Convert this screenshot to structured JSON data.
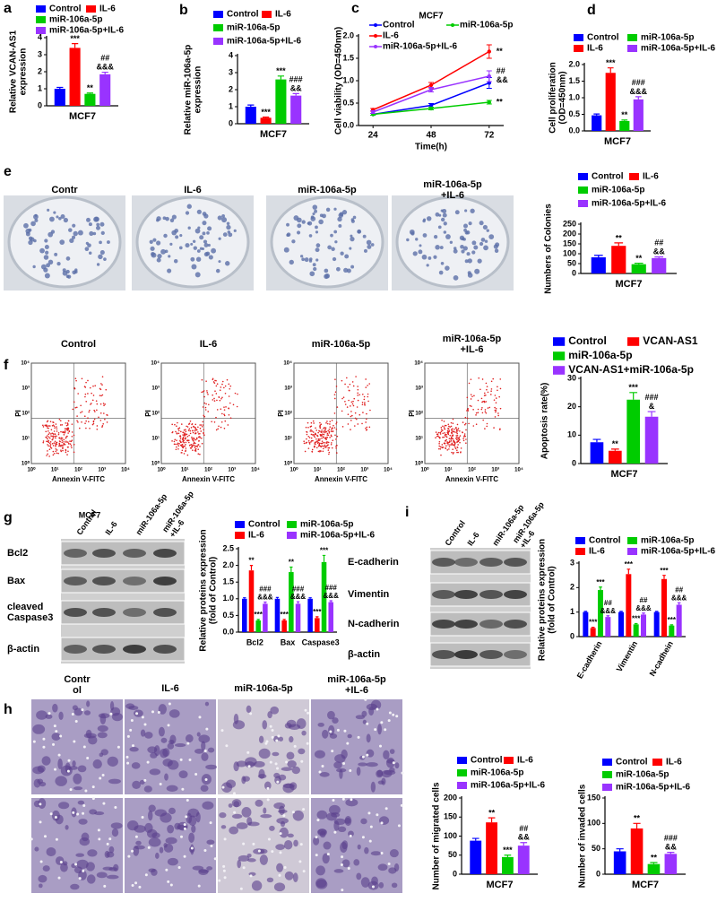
{
  "chart_data": [
    {
      "type": "bar",
      "panel": "a",
      "ylabel": "Relative VCAN-AS1\nexpression",
      "categories": [
        "MCF7"
      ],
      "ylim": [
        0,
        4
      ],
      "yticks": [
        0,
        1,
        2,
        3,
        4
      ],
      "series": [
        {
          "name": "Control",
          "color": "#0000ff",
          "values": [
            1.0
          ],
          "errors": [
            0.08
          ],
          "annotations": [
            null
          ]
        },
        {
          "name": "IL-6",
          "color": "#ff0000",
          "values": [
            3.4
          ],
          "errors": [
            0.25
          ],
          "annotations": [
            "***"
          ]
        },
        {
          "name": "miR-106a-5p",
          "color": "#00cc00",
          "values": [
            0.7
          ],
          "errors": [
            0.05
          ],
          "annotations": [
            "**"
          ]
        },
        {
          "name": "miR-106a-5p+IL-6",
          "color": "#9933ff",
          "values": [
            1.85
          ],
          "errors": [
            0.12
          ],
          "annotations": [
            "##\n&&&"
          ]
        }
      ]
    },
    {
      "type": "bar",
      "panel": "b",
      "ylabel": "Relative miR-106a-5p\nexpression",
      "categories": [
        "MCF7"
      ],
      "ylim": [
        0,
        4
      ],
      "yticks": [
        0,
        1,
        2,
        3,
        4
      ],
      "series": [
        {
          "name": "Control",
          "color": "#0000ff",
          "values": [
            1.0
          ],
          "errors": [
            0.1
          ],
          "annotations": [
            null
          ]
        },
        {
          "name": "IL-6",
          "color": "#ff0000",
          "values": [
            0.35
          ],
          "errors": [
            0.04
          ],
          "annotations": [
            "***"
          ]
        },
        {
          "name": "miR-106a-5p",
          "color": "#00cc00",
          "values": [
            2.6
          ],
          "errors": [
            0.2
          ],
          "annotations": [
            "***"
          ]
        },
        {
          "name": "miR-106a-5p+IL-6",
          "color": "#9933ff",
          "values": [
            1.65
          ],
          "errors": [
            0.12
          ],
          "annotations": [
            "###\n&&"
          ]
        }
      ]
    },
    {
      "type": "line",
      "panel": "c",
      "title": "MCF7",
      "xlabel": "Time(h)",
      "ylabel": "Cell viability (OD=450nm)",
      "x": [
        24,
        48,
        72
      ],
      "xlim": [
        18,
        78
      ],
      "xticks": [
        24,
        48,
        72
      ],
      "ylim": [
        0,
        2
      ],
      "yticks": [
        {
          "value": 0,
          "label": "0.0"
        },
        {
          "value": 0.5,
          "label": "0.5"
        },
        {
          "value": 1,
          "label": "1.0"
        },
        {
          "value": 1.5,
          "label": "1.5"
        },
        {
          "value": 2,
          "label": "2.0"
        }
      ],
      "series": [
        {
          "name": "Control",
          "color": "#0000ff",
          "values": [
            0.25,
            0.45,
            0.95
          ],
          "errors": [
            0.02,
            0.04,
            0.12
          ],
          "annotation": null
        },
        {
          "name": "IL-6",
          "color": "#ff0000",
          "values": [
            0.35,
            0.9,
            1.65
          ],
          "errors": [
            0.03,
            0.06,
            0.15
          ],
          "annotation": "**"
        },
        {
          "name": "miR-106a-5p",
          "color": "#00cc00",
          "values": [
            0.25,
            0.38,
            0.52
          ],
          "errors": [
            0.02,
            0.03,
            0.04
          ],
          "annotation": "**"
        },
        {
          "name": "miR-106a-5p+IL-6",
          "color": "#9933ff",
          "values": [
            0.3,
            0.8,
            1.1
          ],
          "errors": [
            0.03,
            0.05,
            0.12
          ],
          "annotation": "##\n&&"
        }
      ]
    },
    {
      "type": "bar",
      "panel": "d",
      "ylabel": "Cell proliferation\n(OD=450nm)",
      "categories": [
        "MCF7"
      ],
      "ylim": [
        0,
        2
      ],
      "yticks": [
        {
          "value": 0,
          "label": "0.0"
        },
        {
          "value": 0.5,
          "label": "0.5"
        },
        {
          "value": 1,
          "label": "1.0"
        },
        {
          "value": 1.5,
          "label": "1.5"
        },
        {
          "value": 2,
          "label": "2.0"
        }
      ],
      "series": [
        {
          "name": "Control",
          "color": "#0000ff",
          "values": [
            0.47
          ],
          "errors": [
            0.04
          ],
          "annotations": [
            null
          ]
        },
        {
          "name": "IL-6",
          "color": "#ff0000",
          "values": [
            1.75
          ],
          "errors": [
            0.15
          ],
          "annotations": [
            "***"
          ]
        },
        {
          "name": "miR-106a-5p",
          "color": "#00cc00",
          "values": [
            0.3
          ],
          "errors": [
            0.03
          ],
          "annotations": [
            "**"
          ]
        },
        {
          "name": "miR-106a-5p+IL-6",
          "color": "#9933ff",
          "values": [
            0.95
          ],
          "errors": [
            0.08
          ],
          "annotations": [
            "###\n&&&"
          ]
        }
      ]
    },
    {
      "type": "bar",
      "panel": "e",
      "ylabel": "Numbers of Colonies",
      "categories": [
        "MCF7"
      ],
      "ylim": [
        0,
        250
      ],
      "yticks": [
        0,
        50,
        100,
        150,
        200,
        250
      ],
      "series": [
        {
          "name": "Control",
          "color": "#0000ff",
          "values": [
            82
          ],
          "errors": [
            10
          ],
          "annotations": [
            null
          ]
        },
        {
          "name": "IL-6",
          "color": "#ff0000",
          "values": [
            140
          ],
          "errors": [
            15
          ],
          "annotations": [
            "**"
          ]
        },
        {
          "name": "miR-106a-5p",
          "color": "#00cc00",
          "values": [
            47
          ],
          "errors": [
            5
          ],
          "annotations": [
            "**"
          ]
        },
        {
          "name": "miR-106a-5p+IL-6",
          "color": "#9933ff",
          "values": [
            78
          ],
          "errors": [
            6
          ],
          "annotations": [
            "##\n&&"
          ]
        }
      ]
    },
    {
      "type": "bar",
      "panel": "f",
      "ylabel": "Apoptosis rate(%)",
      "categories": [
        "MCF7"
      ],
      "ylim": [
        0,
        30
      ],
      "yticks": [
        0,
        10,
        20,
        30
      ],
      "series": [
        {
          "name": "Control",
          "color": "#0000ff",
          "values": [
            7.5
          ],
          "errors": [
            1
          ],
          "annotations": [
            null
          ]
        },
        {
          "name": "VCAN-AS1",
          "color": "#ff0000",
          "values": [
            4.5
          ],
          "errors": [
            0.6
          ],
          "annotations": [
            "**"
          ]
        },
        {
          "name": "miR-106a-5p",
          "color": "#00cc00",
          "values": [
            22.5
          ],
          "errors": [
            2.5
          ],
          "annotations": [
            "***"
          ]
        },
        {
          "name": "VCAN-AS1+miR-106a-5p",
          "color": "#9933ff",
          "values": [
            16.5
          ],
          "errors": [
            1.8
          ],
          "annotations": [
            "###\n&"
          ]
        }
      ]
    },
    {
      "type": "bar",
      "panel": "g",
      "ylabel": "Relative proteins expression\n(fold of Control)",
      "categories": [
        "Bcl2",
        "Bax",
        "Caspase3"
      ],
      "ylim": [
        0,
        2.5
      ],
      "yticks": [
        {
          "value": 0,
          "label": "0.0"
        },
        {
          "value": 0.5,
          "label": "0.5"
        },
        {
          "value": 1,
          "label": "1.0"
        },
        {
          "value": 1.5,
          "label": "1.5"
        },
        {
          "value": 2,
          "label": "2.0"
        },
        {
          "value": 2.5,
          "label": "2.5"
        }
      ],
      "series": [
        {
          "name": "Control",
          "color": "#0000ff",
          "values": [
            1,
            1,
            1
          ],
          "errors": [
            0.03,
            0.04,
            0.03
          ],
          "annotations": [
            null,
            null,
            null
          ]
        },
        {
          "name": "IL-6",
          "color": "#ff0000",
          "values": [
            1.85,
            0.35,
            0.42
          ],
          "errors": [
            0.15,
            0.03,
            0.04
          ],
          "annotations": [
            "**",
            "***",
            "***"
          ]
        },
        {
          "name": "miR-106a-5p",
          "color": "#00cc00",
          "values": [
            0.35,
            1.8,
            2.1
          ],
          "errors": [
            0.03,
            0.15,
            0.2
          ],
          "annotations": [
            "***",
            "**",
            "***"
          ]
        },
        {
          "name": "miR-106a-5p+IL-6",
          "color": "#9933ff",
          "values": [
            0.85,
            0.85,
            0.9
          ],
          "errors": [
            0.05,
            0.06,
            0.04
          ],
          "annotations": [
            "###\n&&&",
            "###\n&&&",
            "###\n&&&"
          ]
        }
      ]
    },
    {
      "type": "bar",
      "panel": "i",
      "ylabel": "Relative proteins expression\n(fold of Control)",
      "categories": [
        "E-cadherin",
        "Vimentin",
        "N-cadhein"
      ],
      "ylim": [
        0,
        3
      ],
      "yticks": [
        0,
        1,
        2,
        3
      ],
      "series": [
        {
          "name": "Control",
          "color": "#0000ff",
          "values": [
            1,
            1,
            1
          ],
          "errors": [
            0.03,
            0.03,
            0.03
          ],
          "annotations": [
            null,
            null,
            null
          ]
        },
        {
          "name": "IL-6",
          "color": "#ff0000",
          "values": [
            0.35,
            2.55,
            2.35
          ],
          "errors": [
            0.03,
            0.2,
            0.15
          ],
          "annotations": [
            "***",
            "***",
            "***"
          ]
        },
        {
          "name": "miR-106a-5p",
          "color": "#00cc00",
          "values": [
            1.9,
            0.5,
            0.45
          ],
          "errors": [
            0.12,
            0.03,
            0.03
          ],
          "annotations": [
            "***",
            "***",
            "***"
          ]
        },
        {
          "name": "miR-106a-5p+IL-6",
          "color": "#9933ff",
          "values": [
            0.8,
            0.9,
            1.3
          ],
          "errors": [
            0.05,
            0.06,
            0.08
          ],
          "annotations": [
            "##\n&&&",
            "##\n&&&",
            "##\n&&&"
          ]
        }
      ]
    },
    {
      "type": "bar",
      "ylabel": "Number of migrated cells",
      "categories": [
        "MCF7"
      ],
      "ylim": [
        0,
        200
      ],
      "yticks": [
        0,
        50,
        100,
        150,
        200
      ],
      "series": [
        {
          "name": "Control",
          "color": "#0000ff",
          "values": [
            88
          ],
          "errors": [
            6
          ],
          "annotations": [
            null
          ]
        },
        {
          "name": "IL-6",
          "color": "#ff0000",
          "values": [
            136
          ],
          "errors": [
            12
          ],
          "annotations": [
            "**"
          ]
        },
        {
          "name": "miR-106a-5p",
          "color": "#00cc00",
          "values": [
            45
          ],
          "errors": [
            5
          ],
          "annotations": [
            "***"
          ]
        },
        {
          "name": "miR-106a-5p+IL-6",
          "color": "#9933ff",
          "values": [
            75
          ],
          "errors": [
            8
          ],
          "annotations": [
            "##\n&&"
          ]
        }
      ]
    },
    {
      "type": "bar",
      "ylabel": "Number of invaded cells",
      "categories": [
        "MCF7"
      ],
      "ylim": [
        0,
        150
      ],
      "yticks": [
        0,
        50,
        100,
        150
      ],
      "series": [
        {
          "name": "Control",
          "color": "#0000ff",
          "values": [
            45
          ],
          "errors": [
            5
          ],
          "annotations": [
            null
          ]
        },
        {
          "name": "IL-6",
          "color": "#ff0000",
          "values": [
            90
          ],
          "errors": [
            10
          ],
          "annotations": [
            "**"
          ]
        },
        {
          "name": "miR-106a-5p",
          "color": "#00cc00",
          "values": [
            20
          ],
          "errors": [
            3
          ],
          "annotations": [
            "**"
          ]
        },
        {
          "name": "miR-106a-5p+IL-6",
          "color": "#9933ff",
          "values": [
            40
          ],
          "errors": [
            3
          ],
          "annotations": [
            "###\n&&"
          ]
        }
      ]
    }
  ],
  "images": {
    "colonies": {
      "labels": [
        "Contr",
        "IL-6",
        "miR-106a-5p",
        "miR-106a-5p\n+IL-6"
      ]
    },
    "flow": {
      "titles": [
        "Control",
        "IL-6",
        "miR-106a-5p",
        "miR-106a-5p\n+IL-6"
      ],
      "x_label": "Annexin V-FITC",
      "y_label": "PI",
      "ticks": [
        "10⁰",
        "10¹",
        "10²",
        "10³",
        "10⁴"
      ]
    },
    "blot_g": {
      "group": "MCF7",
      "lanes": [
        "Control",
        "IL-6",
        "miR-106a-5p",
        "miR-106a-5p\n+IL-6"
      ],
      "rows": [
        "Bcl2",
        "Bax",
        "cleaved\nCaspase3",
        "β-actin"
      ]
    },
    "blot_i": {
      "lanes": [
        "Control",
        "IL-6",
        "miR-106a-5p",
        "miR-106a-5p\n+IL-6"
      ],
      "rows": [
        "E-cadherin",
        "Vimentin",
        "N-cadherin",
        "β-actin"
      ]
    },
    "transwell": {
      "panel": "h",
      "labels": [
        "Contr\nol",
        "IL-6",
        "miR-106a-5p",
        "miR-106a-5p\n+IL-6"
      ]
    }
  }
}
